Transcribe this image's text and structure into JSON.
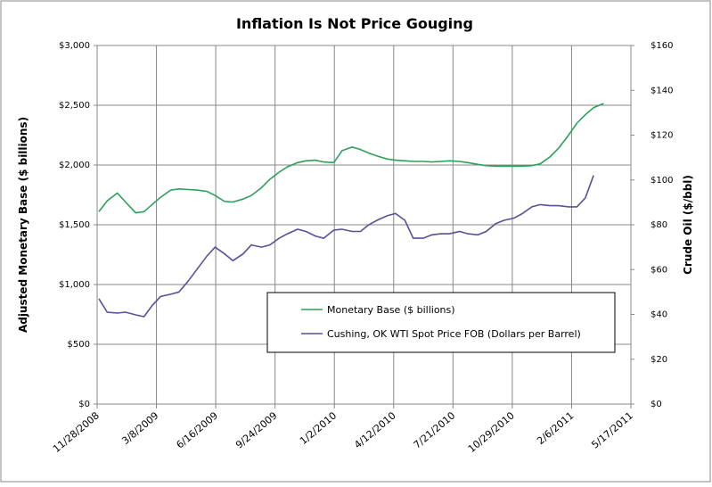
{
  "chart_data": {
    "type": "line",
    "title": "Inflation Is Not Price Gouging",
    "y_label": "Adjusted Monetary Base ($ billions)",
    "y2_label": "Crude Oil ($/bbl)",
    "x": [
      "2008-12-01",
      "2008-12-15",
      "2009-01-01",
      "2009-01-15",
      "2009-02-01",
      "2009-02-15",
      "2009-03-01",
      "2009-03-15",
      "2009-04-01",
      "2009-04-15",
      "2009-05-01",
      "2009-05-15",
      "2009-06-01",
      "2009-06-15",
      "2009-07-01",
      "2009-07-15",
      "2009-08-01",
      "2009-08-15",
      "2009-09-01",
      "2009-09-15",
      "2009-10-01",
      "2009-10-15",
      "2009-11-01",
      "2009-11-15",
      "2009-12-01",
      "2009-12-15",
      "2010-01-01",
      "2010-01-15",
      "2010-02-01",
      "2010-02-15",
      "2010-03-01",
      "2010-03-15",
      "2010-04-01",
      "2010-04-15",
      "2010-05-01",
      "2010-05-15",
      "2010-06-01",
      "2010-06-15",
      "2010-07-01",
      "2010-07-15",
      "2010-08-01",
      "2010-08-15",
      "2010-09-01",
      "2010-09-15",
      "2010-10-01",
      "2010-10-15",
      "2010-11-01",
      "2010-11-15",
      "2010-12-01",
      "2010-12-15",
      "2011-01-01",
      "2011-01-15",
      "2011-02-01",
      "2011-02-15",
      "2011-03-01",
      "2011-03-15",
      "2011-04-01"
    ],
    "series": [
      {
        "name": "Monetary Base ($ billions)",
        "color": "#2ca05a",
        "axis": "y",
        "values": [
          1610,
          1700,
          1765,
          1690,
          1600,
          1610,
          1670,
          1730,
          1790,
          1800,
          1795,
          1790,
          1780,
          1745,
          1695,
          1690,
          1715,
          1745,
          1810,
          1880,
          1940,
          1985,
          2020,
          2035,
          2040,
          2025,
          2020,
          2120,
          2150,
          2130,
          2100,
          2075,
          2050,
          2040,
          2035,
          2030,
          2030,
          2025,
          2030,
          2035,
          2030,
          2020,
          2005,
          1995,
          1990,
          1990,
          1990,
          1990,
          1995,
          2010,
          2070,
          2140,
          2250,
          2350,
          2420,
          2480,
          2515
        ]
      },
      {
        "name": "Cushing, OK WTI Spot Price FOB (Dollars per Barrel)",
        "color": "#5a4f9a",
        "axis": "y2",
        "values": [
          47,
          41,
          40.6,
          41,
          39.8,
          39,
          44,
          48,
          49,
          50,
          55,
          60,
          66,
          70,
          67,
          64,
          67,
          71,
          70,
          71,
          74,
          76,
          78,
          77,
          75,
          74,
          77.6,
          78,
          77,
          77,
          80,
          82,
          84,
          85,
          82,
          74,
          74,
          75.5,
          76,
          76,
          77,
          76,
          75.5,
          77,
          80.5,
          82,
          83,
          85,
          88,
          89,
          88.5,
          88.5,
          88,
          88,
          92,
          102,
          null
        ]
      }
    ],
    "xlim": [
      "2008-11-28",
      "2011-05-17"
    ],
    "xticks": [
      {
        "value": "2008-11-28",
        "label": "11/28/2008"
      },
      {
        "value": "2009-03-08",
        "label": "3/8/2009"
      },
      {
        "value": "2009-06-16",
        "label": "6/16/2009"
      },
      {
        "value": "2009-09-24",
        "label": "9/24/2009"
      },
      {
        "value": "2010-01-02",
        "label": "1/2/2010"
      },
      {
        "value": "2010-04-12",
        "label": "4/12/2010"
      },
      {
        "value": "2010-07-21",
        "label": "7/21/2010"
      },
      {
        "value": "2010-10-29",
        "label": "10/29/2010"
      },
      {
        "value": "2011-02-06",
        "label": "2/6/2011"
      },
      {
        "value": "2011-05-17",
        "label": "5/17/2011"
      }
    ],
    "ylim": [
      0,
      3000
    ],
    "yticks": [
      {
        "value": 0,
        "label": "$0"
      },
      {
        "value": 500,
        "label": "$500"
      },
      {
        "value": 1000,
        "label": "$1,000"
      },
      {
        "value": 1500,
        "label": "$1,500"
      },
      {
        "value": 2000,
        "label": "$2,000"
      },
      {
        "value": 2500,
        "label": "$2,500"
      },
      {
        "value": 3000,
        "label": "$3,000"
      }
    ],
    "y2lim": [
      0,
      160
    ],
    "y2ticks": [
      {
        "value": 0,
        "label": "$0"
      },
      {
        "value": 20,
        "label": "$20"
      },
      {
        "value": 40,
        "label": "$40"
      },
      {
        "value": 60,
        "label": "$60"
      },
      {
        "value": 80,
        "label": "$80"
      },
      {
        "value": 100,
        "label": "$100"
      },
      {
        "value": 120,
        "label": "$120"
      },
      {
        "value": 140,
        "label": "$140"
      },
      {
        "value": 160,
        "label": "$160"
      }
    ],
    "grid": true
  }
}
